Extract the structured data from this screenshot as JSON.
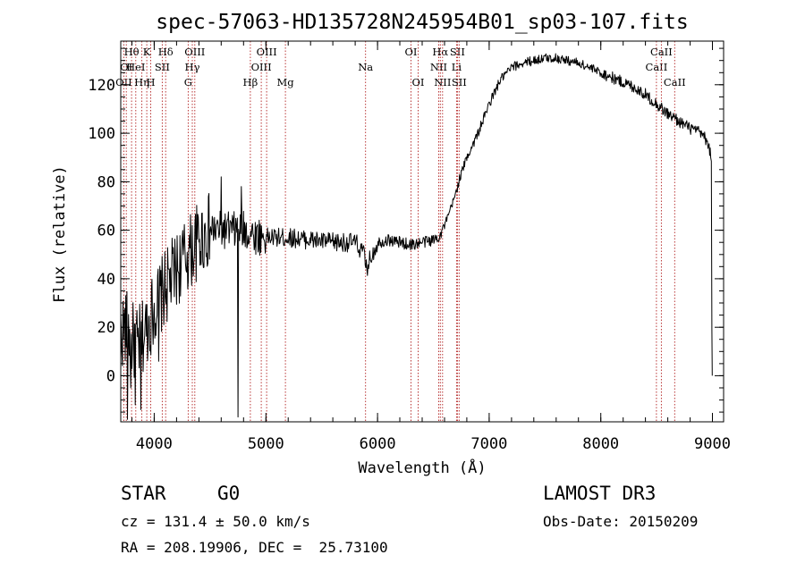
{
  "colors": {
    "foreground": "#000000",
    "background": "#ffffff",
    "line_marker": "#b22222"
  },
  "chart_data": {
    "type": "line",
    "title": "spec-57063-HD135728N245954B01_sp03-107.fits",
    "xlabel": "Wavelength (Å)",
    "ylabel": "Flux (relative)",
    "xlim": [
      3700,
      9100
    ],
    "ylim": [
      -19,
      138
    ],
    "xticks": [
      4000,
      5000,
      6000,
      7000,
      8000,
      9000
    ],
    "yticks": [
      0,
      20,
      40,
      60,
      80,
      100,
      120
    ],
    "x_minor_step": 200,
    "y_minor_step": 5,
    "series": [
      {
        "name": "spectrum",
        "anchors": [
          [
            3700,
            18
          ],
          [
            3750,
            20
          ],
          [
            3800,
            15
          ],
          [
            3850,
            12
          ],
          [
            3900,
            16
          ],
          [
            3950,
            22
          ],
          [
            4000,
            28
          ],
          [
            4100,
            36
          ],
          [
            4200,
            44
          ],
          [
            4300,
            50
          ],
          [
            4400,
            56
          ],
          [
            4500,
            60
          ],
          [
            4600,
            60
          ],
          [
            4700,
            60
          ],
          [
            4800,
            60
          ],
          [
            4900,
            58
          ],
          [
            5000,
            57
          ],
          [
            5200,
            57
          ],
          [
            5400,
            56
          ],
          [
            5600,
            55
          ],
          [
            5800,
            55
          ],
          [
            5880,
            50
          ],
          [
            5900,
            44
          ],
          [
            5950,
            50
          ],
          [
            6000,
            55
          ],
          [
            6100,
            56
          ],
          [
            6200,
            55
          ],
          [
            6300,
            54
          ],
          [
            6400,
            55
          ],
          [
            6500,
            56
          ],
          [
            6560,
            58
          ],
          [
            6620,
            64
          ],
          [
            6680,
            72
          ],
          [
            6740,
            82
          ],
          [
            6800,
            90
          ],
          [
            6900,
            100
          ],
          [
            7000,
            112
          ],
          [
            7100,
            122
          ],
          [
            7200,
            127
          ],
          [
            7300,
            129
          ],
          [
            7400,
            130
          ],
          [
            7500,
            131
          ],
          [
            7600,
            131
          ],
          [
            7700,
            130
          ],
          [
            7800,
            129
          ],
          [
            7900,
            127
          ],
          [
            8000,
            125
          ],
          [
            8100,
            123
          ],
          [
            8200,
            121
          ],
          [
            8300,
            119
          ],
          [
            8400,
            116
          ],
          [
            8500,
            112
          ],
          [
            8600,
            108
          ],
          [
            8700,
            105
          ],
          [
            8800,
            102
          ],
          [
            8900,
            100
          ],
          [
            8960,
            96
          ],
          [
            8990,
            90
          ]
        ],
        "noise": [
          [
            3700,
            4500,
            16
          ],
          [
            4500,
            5000,
            8
          ],
          [
            5000,
            6000,
            4
          ],
          [
            6000,
            6600,
            2.5
          ],
          [
            6600,
            8000,
            2
          ],
          [
            8000,
            9000,
            2.5
          ]
        ],
        "spikes": [
          [
            3760,
            -18
          ],
          [
            3790,
            -5
          ],
          [
            3830,
            -12
          ],
          [
            3880,
            -14
          ],
          [
            4040,
            6
          ],
          [
            4280,
            46
          ],
          [
            4600,
            82
          ],
          [
            4750,
            -17
          ],
          [
            4780,
            78
          ]
        ],
        "tail": [
          [
            8995,
            19
          ],
          [
            8998,
            0
          ]
        ]
      }
    ],
    "line_markers": [
      {
        "wavelength": 3727,
        "labels": [
          "OII"
        ],
        "row": 3
      },
      {
        "wavelength": 3750,
        "labels": [
          "OI"
        ],
        "row": 2
      },
      {
        "wavelength": 3797,
        "labels": [
          "Hθ"
        ],
        "row": 1
      },
      {
        "wavelength": 3835,
        "labels": [
          "HeI"
        ],
        "row": 2
      },
      {
        "wavelength": 3889,
        "labels": [
          "Hη"
        ],
        "row": 3
      },
      {
        "wavelength": 3933,
        "labels": [
          "K"
        ],
        "row": 1
      },
      {
        "wavelength": 3968,
        "labels": [
          "H"
        ],
        "row": 3
      },
      {
        "wavelength": 4072,
        "labels": [
          "SII"
        ],
        "row": 2
      },
      {
        "wavelength": 4102,
        "labels": [
          "Hδ"
        ],
        "row": 1
      },
      {
        "wavelength": 4304,
        "labels": [
          "G"
        ],
        "row": 3
      },
      {
        "wavelength": 4341,
        "labels": [
          "Hγ"
        ],
        "row": 2
      },
      {
        "wavelength": 4363,
        "labels": [
          "OIII"
        ],
        "row": 1
      },
      {
        "wavelength": 4861,
        "labels": [
          "Hβ"
        ],
        "row": 3
      },
      {
        "wavelength": 4959,
        "labels": [
          "OIII"
        ],
        "row": 2
      },
      {
        "wavelength": 5007,
        "labels": [
          "OIII"
        ],
        "row": 1
      },
      {
        "wavelength": 5175,
        "labels": [
          "Mg"
        ],
        "row": 3
      },
      {
        "wavelength": 5893,
        "labels": [
          "Na"
        ],
        "row": 2
      },
      {
        "wavelength": 6300,
        "labels": [
          "OI"
        ],
        "row": 1
      },
      {
        "wavelength": 6364,
        "labels": [
          "OI"
        ],
        "row": 3
      },
      {
        "wavelength": 6548,
        "labels": [
          "NII"
        ],
        "row": 2
      },
      {
        "wavelength": 6563,
        "labels": [
          "Hα"
        ],
        "row": 1
      },
      {
        "wavelength": 6583,
        "labels": [
          "NII"
        ],
        "row": 3
      },
      {
        "wavelength": 6708,
        "labels": [
          "Li"
        ],
        "row": 2
      },
      {
        "wavelength": 6716,
        "labels": [
          "SII"
        ],
        "row": 1
      },
      {
        "wavelength": 6731,
        "labels": [
          "SII"
        ],
        "row": 3
      },
      {
        "wavelength": 8498,
        "labels": [
          "CaII"
        ],
        "row": 2
      },
      {
        "wavelength": 8542,
        "labels": [
          "CaII"
        ],
        "row": 1
      },
      {
        "wavelength": 8662,
        "labels": [
          "CaII"
        ],
        "row": 3
      }
    ]
  },
  "info": {
    "object_class": "STAR",
    "subclass": "G0",
    "redshift_line": "cz = 131.4 ± 50.0 km/s",
    "coords_line": "RA = 208.19906, DEC =  25.73100",
    "survey": "LAMOST DR3",
    "obs_date": "Obs-Date: 20150209"
  }
}
